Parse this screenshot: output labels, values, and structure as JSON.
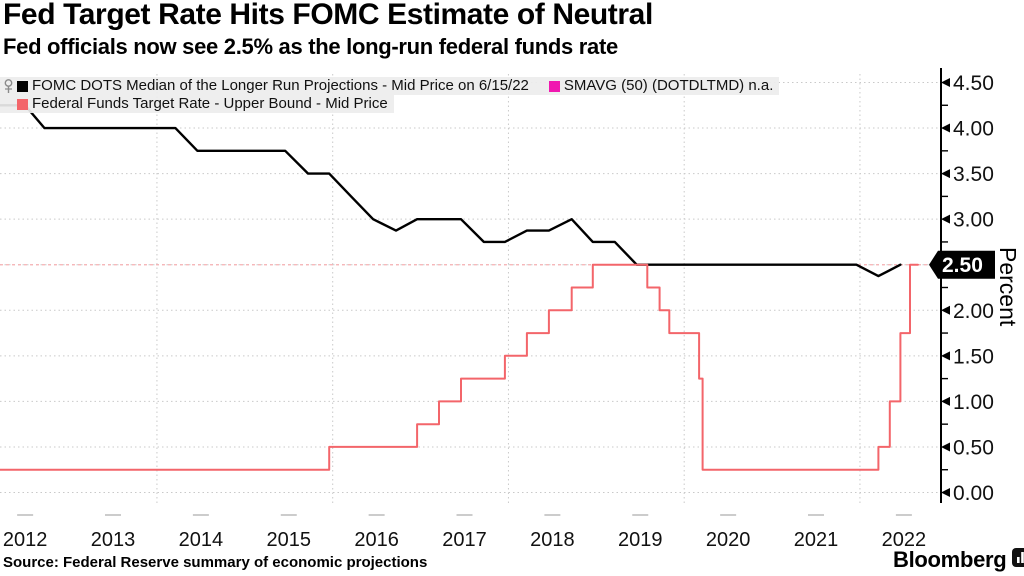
{
  "header": {
    "title": "Fed Target Rate Hits FOMC Estimate of Neutral",
    "subtitle": "Fed officials now see 2.5% as the long-run federal funds rate"
  },
  "legend": {
    "items": [
      {
        "label": "FOMC DOTS Median of the Longer Run Projections - Mid Price on 6/15/22",
        "color": "#000000"
      },
      {
        "label": "SMAVG (50) (DOTDLTMD) n.a.",
        "color": "#f018b0"
      },
      {
        "label": "Federal Funds Target Rate - Upper Bound - Mid Price",
        "color": "#f3656a"
      }
    ]
  },
  "axis": {
    "y_label": "Percent",
    "y_tick_labels": [
      "0.00",
      "0.50",
      "1.00",
      "1.50",
      "2.00",
      "2.50",
      "3.00",
      "3.50",
      "4.00",
      "4.50"
    ],
    "x_tick_labels": [
      "2012",
      "2013",
      "2014",
      "2015",
      "2016",
      "2017",
      "2018",
      "2019",
      "2020",
      "2021",
      "2022"
    ],
    "last_price_label": "2.50"
  },
  "footer": {
    "source": "Source: Federal Reserve summary of economic projections",
    "brand": "Bloomberg"
  },
  "colors": {
    "fomc_line": "#000000",
    "fed_funds_line": "#f3656a",
    "smavg_swatch": "#f018b0",
    "gridline": "#c9c9c9",
    "last_price_line": "#f6b0b3",
    "axis_line": "#000000",
    "tag_bg": "#000000",
    "tag_text": "#ffffff"
  },
  "chart_data": {
    "type": "line",
    "title": "Fed Target Rate Hits FOMC Estimate of Neutral",
    "subtitle": "Fed officials now see 2.5% as the long-run federal funds rate",
    "xlabel": "",
    "ylabel": "Percent",
    "ylim": [
      0,
      4.5
    ],
    "xlim": [
      2012.21,
      2022.92
    ],
    "y_major_step": 0.5,
    "y_minor_step": 0.25,
    "grid": true,
    "legend_position": "top-left",
    "x_year_labels": [
      2012,
      2013,
      2014,
      2015,
      2016,
      2017,
      2018,
      2019,
      2020,
      2021,
      2022
    ],
    "x_gridline_years": [
      2014,
      2016,
      2018,
      2020,
      2022
    ],
    "last_price_value": 2.5,
    "series": [
      {
        "name": "FOMC DOTS Median of the Longer Run Projections - Mid Price on 6/15/22",
        "color": "#000000",
        "mode": "linear",
        "points": [
          [
            2012.21,
            4.25
          ],
          [
            2012.5,
            4.25
          ],
          [
            2012.72,
            4.0
          ],
          [
            2014.21,
            4.0
          ],
          [
            2014.46,
            3.75
          ],
          [
            2015.46,
            3.75
          ],
          [
            2015.72,
            3.5
          ],
          [
            2015.96,
            3.5
          ],
          [
            2016.21,
            3.25
          ],
          [
            2016.46,
            3.0
          ],
          [
            2016.72,
            2.875
          ],
          [
            2016.96,
            3.0
          ],
          [
            2017.46,
            3.0
          ],
          [
            2017.72,
            2.75
          ],
          [
            2017.96,
            2.75
          ],
          [
            2018.21,
            2.875
          ],
          [
            2018.46,
            2.875
          ],
          [
            2018.72,
            3.0
          ],
          [
            2018.96,
            2.75
          ],
          [
            2019.21,
            2.75
          ],
          [
            2019.46,
            2.5
          ],
          [
            2021.96,
            2.5
          ],
          [
            2022.21,
            2.375
          ],
          [
            2022.46,
            2.5
          ]
        ]
      },
      {
        "name": "Federal Funds Target Rate - Upper Bound - Mid Price",
        "color": "#f3656a",
        "mode": "step",
        "points": [
          [
            2012.21,
            0.25
          ],
          [
            2015.96,
            0.5
          ],
          [
            2016.96,
            0.75
          ],
          [
            2017.21,
            1.0
          ],
          [
            2017.46,
            1.25
          ],
          [
            2017.96,
            1.5
          ],
          [
            2018.21,
            1.75
          ],
          [
            2018.46,
            2.0
          ],
          [
            2018.72,
            2.25
          ],
          [
            2018.96,
            2.5
          ],
          [
            2019.58,
            2.25
          ],
          [
            2019.72,
            2.0
          ],
          [
            2019.83,
            1.75
          ],
          [
            2020.17,
            1.25
          ],
          [
            2020.21,
            0.25
          ],
          [
            2022.21,
            0.5
          ],
          [
            2022.34,
            1.0
          ],
          [
            2022.46,
            1.75
          ],
          [
            2022.57,
            2.5
          ],
          [
            2022.66,
            2.5
          ]
        ]
      },
      {
        "name": "SMAVG (50) (DOTDLTMD)",
        "color": "#f018b0",
        "mode": "none",
        "note": "n.a.",
        "points": []
      }
    ]
  }
}
